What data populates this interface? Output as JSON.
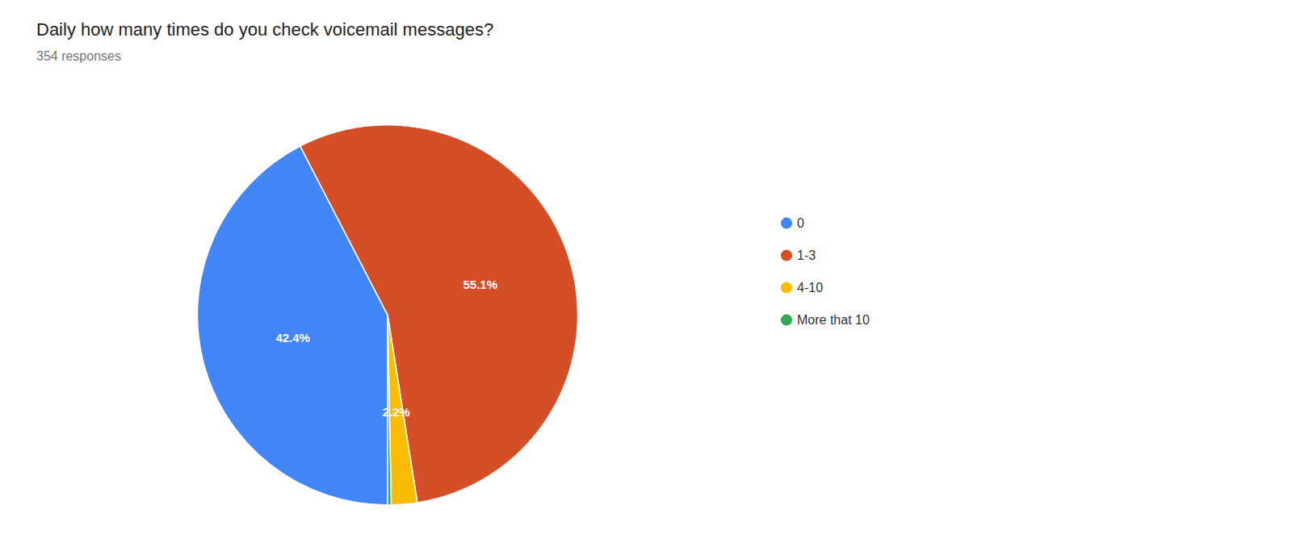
{
  "chart_data": {
    "type": "pie",
    "title": "Daily how many times do you check voicemail messages?",
    "subtitle": "354 responses",
    "categories": [
      "0",
      "1-3",
      "4-10",
      "More that 10"
    ],
    "values": [
      42.4,
      55.1,
      2.2,
      0.3
    ],
    "value_labels": [
      "42.4%",
      "55.1%",
      "2.2%",
      null
    ],
    "colors": [
      "#4285F4",
      "#D44F28",
      "#FBBC04",
      "#34A853"
    ],
    "legend": "right",
    "data_labels": true
  }
}
